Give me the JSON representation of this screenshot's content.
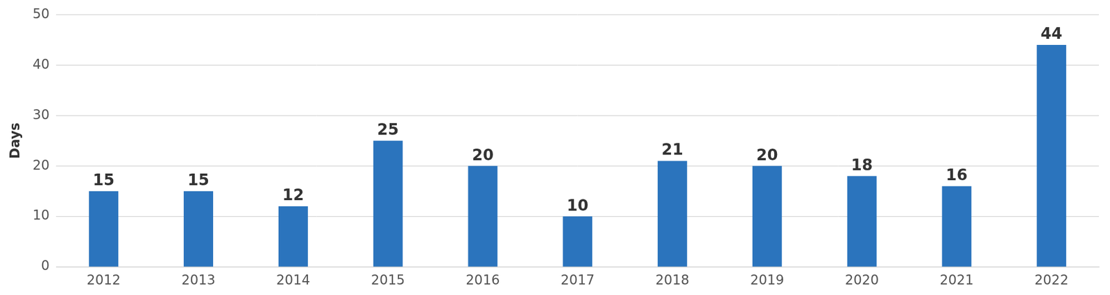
{
  "chart_data": {
    "type": "bar",
    "y_label": "Days",
    "categories": [
      "2012",
      "2013",
      "2014",
      "2015",
      "2016",
      "2017",
      "2018",
      "2019",
      "2020",
      "2021",
      "2022"
    ],
    "values": [
      15,
      15,
      12,
      25,
      20,
      10,
      21,
      20,
      18,
      16,
      44
    ],
    "color": "#2b74bd",
    "ylim": [
      0,
      50
    ],
    "yticks": [
      0,
      10,
      20,
      30,
      40,
      50
    ],
    "grid": true,
    "data_labels": true
  }
}
